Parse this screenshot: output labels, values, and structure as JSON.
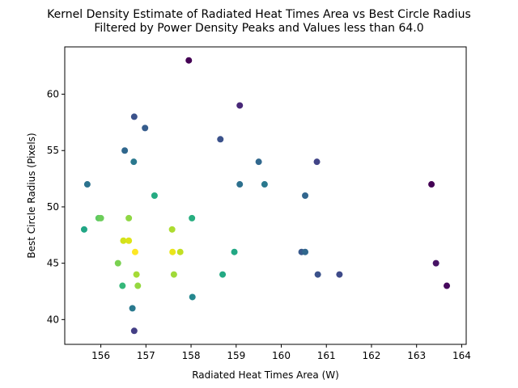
{
  "chart_data": {
    "type": "scatter",
    "title": "Kernel Density Estimate of Radiated Heat Times Area vs Best Circle Radius",
    "subtitle": "Filtered by Power Density Peaks and Values less than 64.0",
    "xlabel": "Radiated Heat Times Area (W)",
    "ylabel": "Best Circle Radius (Pixels)",
    "xlim": [
      155.2,
      164.1
    ],
    "ylim": [
      37.8,
      64.2
    ],
    "xticks": [
      156,
      157,
      158,
      159,
      160,
      161,
      162,
      163,
      164
    ],
    "yticks": [
      40,
      45,
      50,
      55,
      60
    ],
    "grid": false,
    "colormap": "viridis",
    "points": [
      {
        "x": 155.63,
        "y": 48,
        "color": "#21a685"
      },
      {
        "x": 155.7,
        "y": 52,
        "color": "#2c728e"
      },
      {
        "x": 155.95,
        "y": 49,
        "color": "#5ec962"
      },
      {
        "x": 156.0,
        "y": 49,
        "color": "#6ccd5a"
      },
      {
        "x": 156.38,
        "y": 45,
        "color": "#7ad151"
      },
      {
        "x": 156.48,
        "y": 43,
        "color": "#35b779"
      },
      {
        "x": 156.5,
        "y": 47,
        "color": "#d2e21b"
      },
      {
        "x": 156.53,
        "y": 55,
        "color": "#30678d"
      },
      {
        "x": 156.62,
        "y": 49,
        "color": "#8fd744"
      },
      {
        "x": 156.62,
        "y": 47,
        "color": "#dde318"
      },
      {
        "x": 156.7,
        "y": 41,
        "color": "#29798e"
      },
      {
        "x": 156.73,
        "y": 54,
        "color": "#2a788e"
      },
      {
        "x": 156.74,
        "y": 58,
        "color": "#3b528b"
      },
      {
        "x": 156.74,
        "y": 39,
        "color": "#433e85"
      },
      {
        "x": 156.76,
        "y": 46,
        "color": "#fde725"
      },
      {
        "x": 156.79,
        "y": 44,
        "color": "#a5db36"
      },
      {
        "x": 156.82,
        "y": 43,
        "color": "#95d840"
      },
      {
        "x": 156.98,
        "y": 57,
        "color": "#365d8d"
      },
      {
        "x": 157.19,
        "y": 51,
        "color": "#25ab82"
      },
      {
        "x": 157.58,
        "y": 48,
        "color": "#addc30"
      },
      {
        "x": 157.59,
        "y": 46,
        "color": "#eae51a"
      },
      {
        "x": 157.62,
        "y": 44,
        "color": "#a0da39"
      },
      {
        "x": 157.76,
        "y": 46,
        "color": "#c2df23"
      },
      {
        "x": 157.95,
        "y": 63,
        "color": "#440154"
      },
      {
        "x": 158.02,
        "y": 49,
        "color": "#28ae80"
      },
      {
        "x": 158.03,
        "y": 42,
        "color": "#24878e"
      },
      {
        "x": 158.65,
        "y": 56,
        "color": "#3b528b"
      },
      {
        "x": 158.7,
        "y": 44,
        "color": "#23a983"
      },
      {
        "x": 158.96,
        "y": 46,
        "color": "#22a884"
      },
      {
        "x": 159.08,
        "y": 59,
        "color": "#482878"
      },
      {
        "x": 159.08,
        "y": 52,
        "color": "#2d708e"
      },
      {
        "x": 159.5,
        "y": 54,
        "color": "#31688e"
      },
      {
        "x": 159.63,
        "y": 52,
        "color": "#2a788e"
      },
      {
        "x": 160.45,
        "y": 46,
        "color": "#38598c"
      },
      {
        "x": 160.53,
        "y": 46,
        "color": "#30678d"
      },
      {
        "x": 160.53,
        "y": 51,
        "color": "#31668e"
      },
      {
        "x": 160.79,
        "y": 54,
        "color": "#414487"
      },
      {
        "x": 160.81,
        "y": 44,
        "color": "#3b528b"
      },
      {
        "x": 161.29,
        "y": 44,
        "color": "#3e4a89"
      },
      {
        "x": 163.33,
        "y": 52,
        "color": "#440154"
      },
      {
        "x": 163.43,
        "y": 45,
        "color": "#471365"
      },
      {
        "x": 163.67,
        "y": 43,
        "color": "#46085c"
      }
    ]
  }
}
